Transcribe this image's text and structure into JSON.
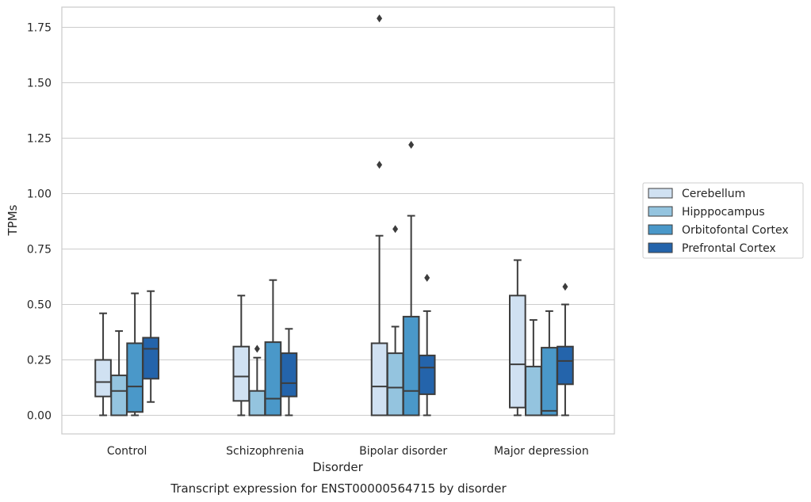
{
  "chart_data": {
    "type": "box",
    "caption": "Transcript expression for ENST00000564715 by disorder",
    "xlabel": "Disorder",
    "ylabel": "TPMs",
    "ylim": [
      -0.085,
      1.88
    ],
    "yticks": [
      0.0,
      0.25,
      0.5,
      0.75,
      1.0,
      1.25,
      1.5,
      1.75
    ],
    "ytick_labels": [
      "0.00",
      "0.25",
      "0.50",
      "0.75",
      "1.00",
      "1.25",
      "1.50",
      "1.75"
    ],
    "grid": true,
    "legend_position": "right",
    "categories": [
      "Control",
      "Schizophrenia",
      "Bipolar disorder",
      "Major depression"
    ],
    "series": [
      {
        "name": "Cerebellum",
        "color": "#d0e1f2",
        "boxes": [
          {
            "whislo": 0.0,
            "q1": 0.085,
            "med": 0.15,
            "q3": 0.25,
            "whishi": 0.46,
            "fliers": []
          },
          {
            "whislo": 0.0,
            "q1": 0.065,
            "med": 0.175,
            "q3": 0.31,
            "whishi": 0.54,
            "fliers": []
          },
          {
            "whislo": 0.0,
            "q1": 0.0,
            "med": 0.13,
            "q3": 0.325,
            "whishi": 0.81,
            "fliers": [
              1.13,
              1.79
            ]
          },
          {
            "whislo": 0.0,
            "q1": 0.035,
            "med": 0.23,
            "q3": 0.54,
            "whishi": 0.7,
            "fliers": []
          }
        ]
      },
      {
        "name": "Hipppocampus",
        "color": "#94c4df",
        "boxes": [
          {
            "whislo": 0.0,
            "q1": 0.0,
            "med": 0.11,
            "q3": 0.18,
            "whishi": 0.38,
            "fliers": []
          },
          {
            "whislo": 0.0,
            "q1": 0.0,
            "med": 0.0,
            "q3": 0.11,
            "whishi": 0.26,
            "fliers": [
              0.3
            ]
          },
          {
            "whislo": 0.0,
            "q1": 0.0,
            "med": 0.125,
            "q3": 0.28,
            "whishi": 0.4,
            "fliers": [
              0.84
            ]
          },
          {
            "whislo": 0.0,
            "q1": 0.0,
            "med": 0.0,
            "q3": 0.22,
            "whishi": 0.43,
            "fliers": []
          }
        ]
      },
      {
        "name": "Orbitofontal Cortex",
        "color": "#4a98c9",
        "boxes": [
          {
            "whislo": 0.0,
            "q1": 0.015,
            "med": 0.13,
            "q3": 0.325,
            "whishi": 0.55,
            "fliers": []
          },
          {
            "whislo": 0.0,
            "q1": 0.0,
            "med": 0.075,
            "q3": 0.33,
            "whishi": 0.61,
            "fliers": []
          },
          {
            "whislo": 0.0,
            "q1": 0.0,
            "med": 0.11,
            "q3": 0.445,
            "whishi": 0.9,
            "fliers": [
              1.22
            ]
          },
          {
            "whislo": 0.0,
            "q1": 0.0,
            "med": 0.02,
            "q3": 0.305,
            "whishi": 0.47,
            "fliers": []
          }
        ]
      },
      {
        "name": "Prefrontal Cortex",
        "color": "#2464ab",
        "boxes": [
          {
            "whislo": 0.06,
            "q1": 0.165,
            "med": 0.3,
            "q3": 0.35,
            "whishi": 0.56,
            "fliers": []
          },
          {
            "whislo": 0.0,
            "q1": 0.085,
            "med": 0.145,
            "q3": 0.28,
            "whishi": 0.39,
            "fliers": []
          },
          {
            "whislo": 0.0,
            "q1": 0.095,
            "med": 0.215,
            "q3": 0.27,
            "whishi": 0.47,
            "fliers": [
              0.62
            ]
          },
          {
            "whislo": 0.0,
            "q1": 0.14,
            "med": 0.245,
            "q3": 0.31,
            "whishi": 0.5,
            "fliers": [
              0.58
            ]
          }
        ]
      }
    ]
  }
}
